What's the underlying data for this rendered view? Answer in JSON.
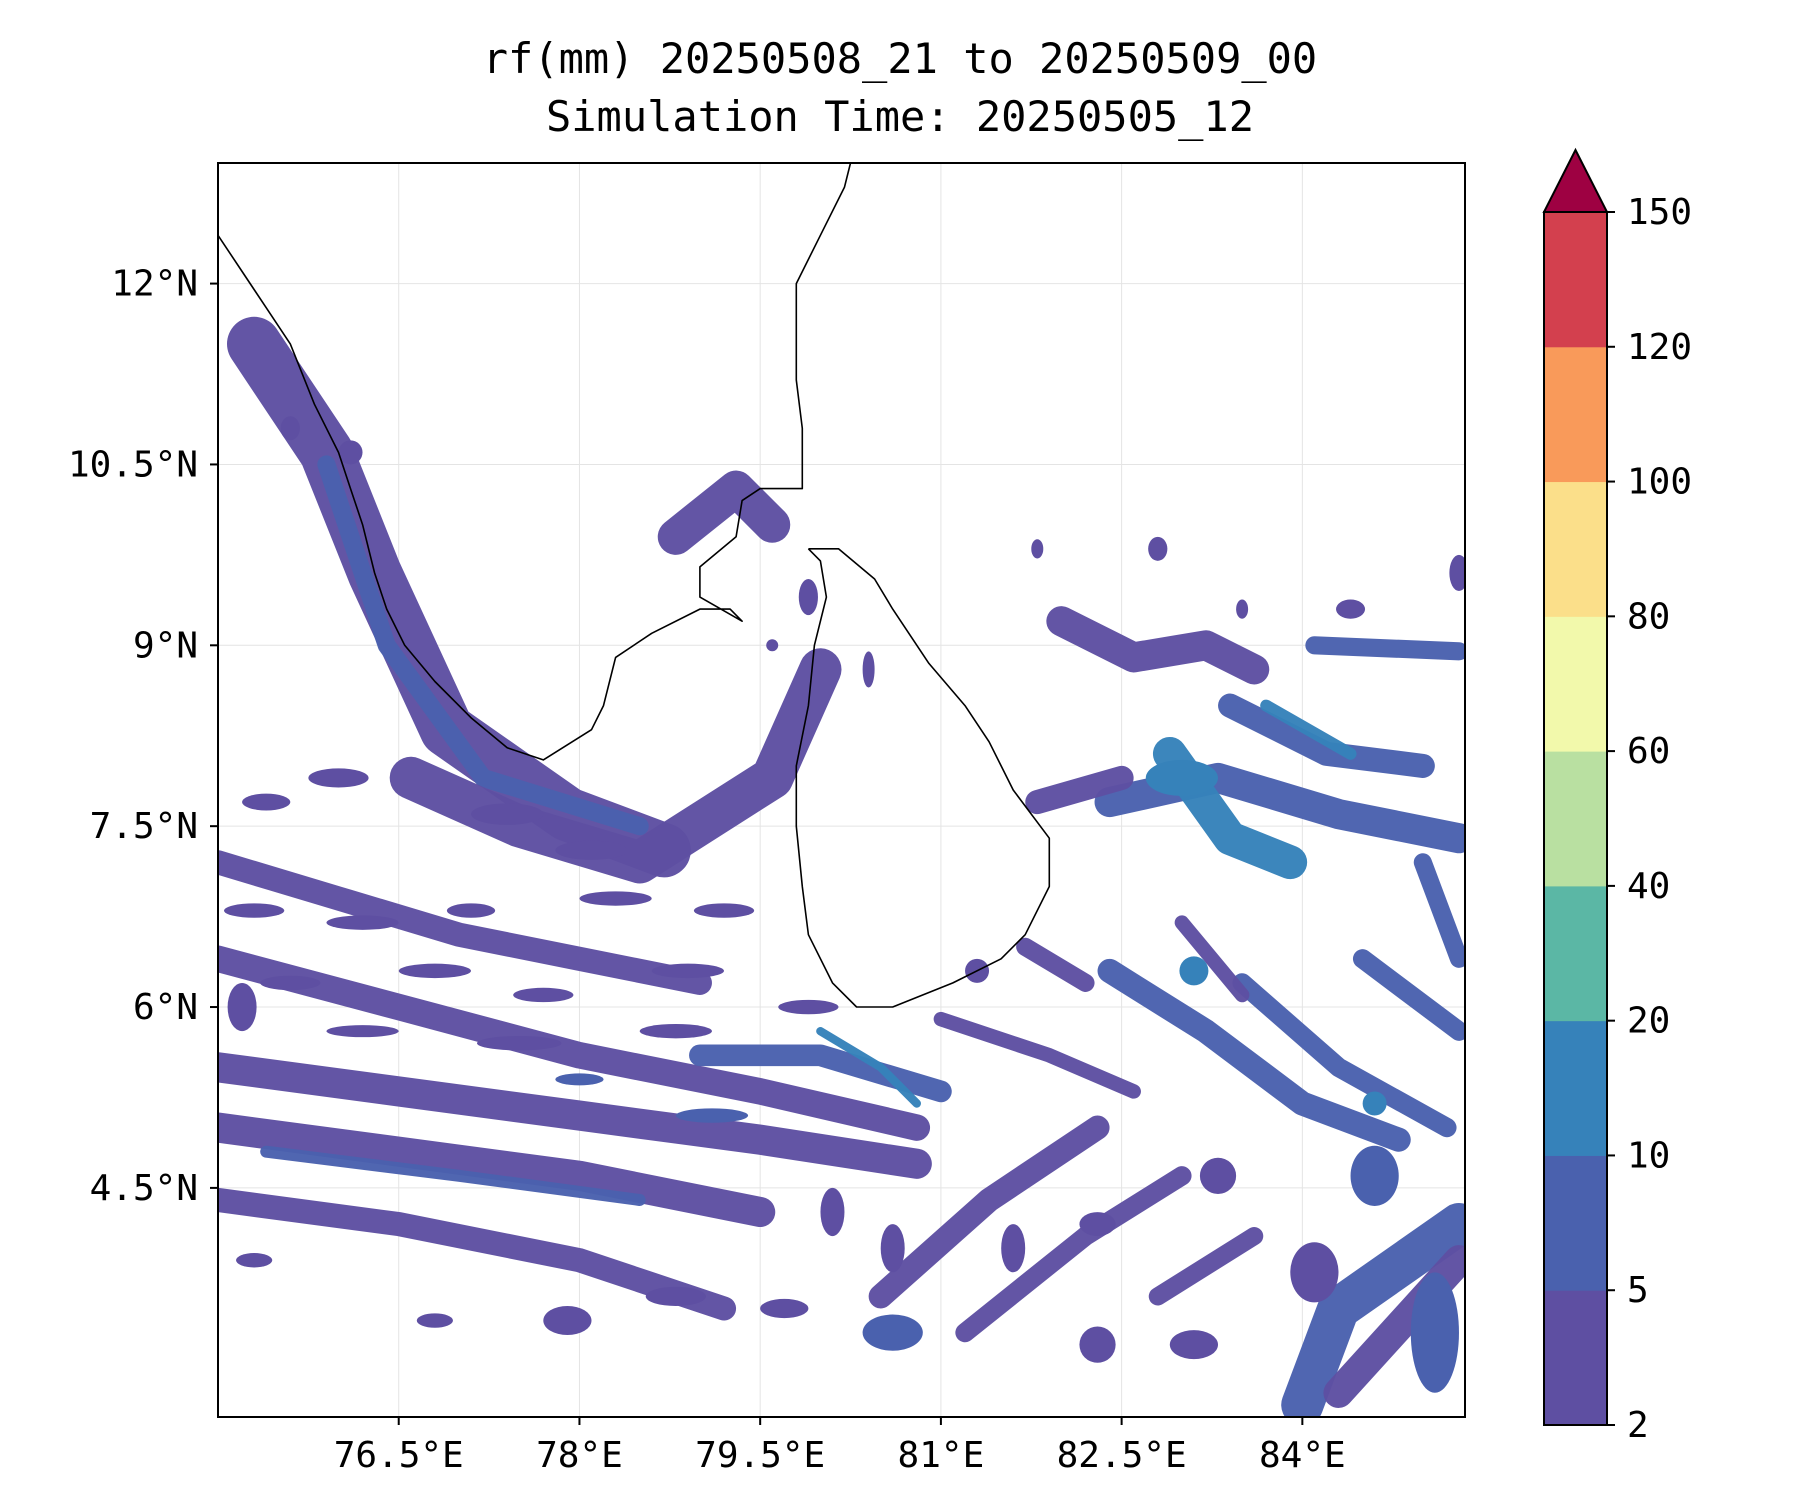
{
  "title": {
    "line1": "rf(mm) 20250508_21 to 20250509_00",
    "line2": "Simulation Time: 20250505_12"
  },
  "map": {
    "lon_range": [
      75.0,
      85.35
    ],
    "lat_range": [
      2.6,
      13.0
    ],
    "lon_ticks": [
      {
        "value": 76.5,
        "label": "76.5°E"
      },
      {
        "value": 78.0,
        "label": "78°E"
      },
      {
        "value": 79.5,
        "label": "79.5°E"
      },
      {
        "value": 81.0,
        "label": "81°E"
      },
      {
        "value": 82.5,
        "label": "82.5°E"
      },
      {
        "value": 84.0,
        "label": "84°E"
      }
    ],
    "lat_ticks": [
      {
        "value": 12.0,
        "label": "12°N"
      },
      {
        "value": 10.5,
        "label": "10.5°N"
      },
      {
        "value": 9.0,
        "label": "9°N"
      },
      {
        "value": 7.5,
        "label": "7.5°N"
      },
      {
        "value": 6.0,
        "label": "6°N"
      },
      {
        "value": 4.5,
        "label": "4.5°N"
      }
    ],
    "gridlines": true
  },
  "colorbar": {
    "levels": [
      2,
      5,
      10,
      20,
      40,
      60,
      80,
      100,
      120,
      150
    ],
    "labels": [
      "2",
      "5",
      "10",
      "20",
      "40",
      "60",
      "80",
      "100",
      "120",
      "150"
    ],
    "colors": [
      "#5e4fa2",
      "#4a61ae",
      "#3682ba",
      "#5bb7a5",
      "#b9e0a1",
      "#f2f9ab",
      "#fbdf8a",
      "#f99a5a",
      "#d3404e"
    ],
    "extend_color": "#9e0142",
    "extend": "max"
  },
  "rain_bands": [
    {
      "points": [
        [
          75.3,
          11.5
        ],
        [
          75.9,
          10.6
        ],
        [
          76.3,
          9.6
        ],
        [
          76.9,
          8.3
        ],
        [
          77.9,
          7.6
        ],
        [
          78.7,
          7.3
        ]
      ],
      "level": 0,
      "width": 0.45
    },
    {
      "points": [
        [
          75.9,
          10.5
        ],
        [
          76.4,
          9.0
        ],
        [
          77.2,
          7.9
        ],
        [
          78.5,
          7.5
        ]
      ],
      "level": 1,
      "width": 0.15
    },
    {
      "points": [
        [
          76.6,
          7.9
        ],
        [
          77.5,
          7.5
        ],
        [
          78.5,
          7.2
        ],
        [
          79.6,
          7.9
        ],
        [
          80.0,
          8.8
        ]
      ],
      "level": 0,
      "width": 0.35
    },
    {
      "points": [
        [
          78.8,
          9.9
        ],
        [
          79.3,
          10.3
        ],
        [
          79.6,
          10.0
        ]
      ],
      "level": 0,
      "width": 0.3
    },
    {
      "points": [
        [
          75.0,
          7.2
        ],
        [
          76.0,
          6.9
        ],
        [
          77.0,
          6.6
        ],
        [
          78.0,
          6.4
        ],
        [
          79.0,
          6.2
        ]
      ],
      "level": 0,
      "width": 0.2
    },
    {
      "points": [
        [
          75.0,
          6.4
        ],
        [
          76.5,
          6.0
        ],
        [
          78.0,
          5.6
        ],
        [
          79.5,
          5.3
        ],
        [
          80.8,
          5.0
        ]
      ],
      "level": 0,
      "width": 0.22
    },
    {
      "points": [
        [
          75.0,
          5.5
        ],
        [
          76.5,
          5.3
        ],
        [
          78.0,
          5.1
        ],
        [
          79.5,
          4.9
        ],
        [
          80.8,
          4.7
        ]
      ],
      "level": 0,
      "width": 0.25
    },
    {
      "points": [
        [
          75.0,
          5.0
        ],
        [
          76.5,
          4.8
        ],
        [
          78.0,
          4.6
        ],
        [
          79.5,
          4.3
        ]
      ],
      "level": 0,
      "width": 0.25
    },
    {
      "points": [
        [
          75.4,
          4.8
        ],
        [
          77.0,
          4.6
        ],
        [
          78.5,
          4.4
        ]
      ],
      "level": 1,
      "width": 0.1
    },
    {
      "points": [
        [
          75.0,
          4.4
        ],
        [
          76.5,
          4.2
        ],
        [
          78.0,
          3.9
        ],
        [
          79.2,
          3.5
        ]
      ],
      "level": 0,
      "width": 0.2
    },
    {
      "points": [
        [
          79.0,
          5.6
        ],
        [
          80.0,
          5.6
        ],
        [
          81.0,
          5.3
        ]
      ],
      "level": 1,
      "width": 0.18
    },
    {
      "points": [
        [
          80.0,
          5.8
        ],
        [
          80.5,
          5.5
        ],
        [
          80.8,
          5.2
        ]
      ],
      "level": 2,
      "width": 0.07
    },
    {
      "points": [
        [
          80.5,
          3.6
        ],
        [
          81.4,
          4.4
        ],
        [
          82.3,
          5.0
        ]
      ],
      "level": 0,
      "width": 0.2
    },
    {
      "points": [
        [
          81.2,
          3.3
        ],
        [
          82.2,
          4.1
        ],
        [
          83.0,
          4.6
        ]
      ],
      "level": 0,
      "width": 0.16
    },
    {
      "points": [
        [
          82.8,
          3.6
        ],
        [
          83.6,
          4.1
        ]
      ],
      "level": 0,
      "width": 0.15
    },
    {
      "points": [
        [
          84.0,
          2.7
        ],
        [
          84.3,
          3.5
        ],
        [
          85.3,
          4.2
        ]
      ],
      "level": 1,
      "width": 0.35
    },
    {
      "points": [
        [
          84.3,
          2.8
        ],
        [
          85.3,
          3.9
        ]
      ],
      "level": 0,
      "width": 0.25
    },
    {
      "points": [
        [
          82.4,
          6.3
        ],
        [
          83.2,
          5.8
        ],
        [
          84.0,
          5.2
        ],
        [
          84.8,
          4.9
        ]
      ],
      "level": 1,
      "width": 0.2
    },
    {
      "points": [
        [
          83.5,
          6.2
        ],
        [
          84.3,
          5.5
        ],
        [
          85.2,
          5.0
        ]
      ],
      "level": 1,
      "width": 0.16
    },
    {
      "points": [
        [
          84.5,
          6.4
        ],
        [
          85.3,
          5.8
        ]
      ],
      "level": 1,
      "width": 0.16
    },
    {
      "points": [
        [
          82.4,
          7.7
        ],
        [
          83.3,
          7.9
        ],
        [
          84.3,
          7.6
        ],
        [
          85.3,
          7.4
        ]
      ],
      "level": 1,
      "width": 0.25
    },
    {
      "points": [
        [
          82.9,
          8.1
        ],
        [
          83.4,
          7.4
        ],
        [
          83.9,
          7.2
        ]
      ],
      "level": 2,
      "width": 0.28
    },
    {
      "points": [
        [
          83.4,
          8.5
        ],
        [
          84.2,
          8.1
        ],
        [
          85.0,
          8.0
        ]
      ],
      "level": 1,
      "width": 0.2
    },
    {
      "points": [
        [
          83.7,
          8.5
        ],
        [
          84.4,
          8.1
        ]
      ],
      "level": 2,
      "width": 0.1
    },
    {
      "points": [
        [
          82.0,
          9.2
        ],
        [
          82.6,
          8.9
        ],
        [
          83.2,
          9.0
        ],
        [
          83.6,
          8.8
        ]
      ],
      "level": 0,
      "width": 0.25
    },
    {
      "points": [
        [
          84.1,
          9.0
        ],
        [
          85.3,
          8.95
        ]
      ],
      "level": 1,
      "width": 0.15
    },
    {
      "points": [
        [
          81.8,
          7.7
        ],
        [
          82.5,
          7.9
        ]
      ],
      "level": 0,
      "width": 0.2
    },
    {
      "points": [
        [
          81.7,
          6.5
        ],
        [
          82.2,
          6.2
        ]
      ],
      "level": 0,
      "width": 0.15
    },
    {
      "points": [
        [
          83.0,
          6.7
        ],
        [
          83.5,
          6.1
        ]
      ],
      "level": 0,
      "width": 0.12
    },
    {
      "points": [
        [
          81.0,
          5.9
        ],
        [
          81.9,
          5.6
        ],
        [
          82.6,
          5.3
        ]
      ],
      "level": 0,
      "width": 0.12
    },
    {
      "points": [
        [
          85.0,
          7.2
        ],
        [
          85.3,
          6.4
        ]
      ],
      "level": 1,
      "width": 0.15
    }
  ],
  "rain_blobs": [
    [
      75.4,
      7.7,
      0.2,
      0.07,
      0
    ],
    [
      76.0,
      7.9,
      0.25,
      0.08,
      0
    ],
    [
      77.4,
      7.6,
      0.3,
      0.09,
      0
    ],
    [
      78.1,
      7.3,
      0.3,
      0.08,
      0
    ],
    [
      75.3,
      6.8,
      0.25,
      0.06,
      0
    ],
    [
      76.2,
      6.7,
      0.3,
      0.06,
      0
    ],
    [
      77.1,
      6.8,
      0.2,
      0.06,
      0
    ],
    [
      78.3,
      6.9,
      0.3,
      0.06,
      0
    ],
    [
      79.2,
      6.8,
      0.25,
      0.06,
      0
    ],
    [
      75.6,
      6.2,
      0.25,
      0.06,
      0
    ],
    [
      76.8,
      6.3,
      0.3,
      0.06,
      0
    ],
    [
      77.7,
      6.1,
      0.25,
      0.06,
      0
    ],
    [
      78.9,
      6.3,
      0.3,
      0.06,
      0
    ],
    [
      79.9,
      6.0,
      0.25,
      0.06,
      0
    ],
    [
      76.2,
      5.8,
      0.3,
      0.05,
      0
    ],
    [
      77.5,
      5.7,
      0.35,
      0.06,
      0
    ],
    [
      78.8,
      5.8,
      0.3,
      0.06,
      0
    ],
    [
      75.3,
      3.9,
      0.15,
      0.06,
      0
    ],
    [
      76.8,
      3.4,
      0.15,
      0.06,
      0
    ],
    [
      77.9,
      3.4,
      0.2,
      0.12,
      0
    ],
    [
      78.8,
      3.6,
      0.25,
      0.08,
      0
    ],
    [
      79.7,
      3.5,
      0.2,
      0.08,
      0
    ],
    [
      80.6,
      3.3,
      0.25,
      0.15,
      1
    ],
    [
      82.3,
      4.2,
      0.15,
      0.1,
      0
    ],
    [
      83.3,
      4.6,
      0.15,
      0.15,
      0
    ],
    [
      84.6,
      4.6,
      0.2,
      0.25,
      1
    ],
    [
      85.1,
      3.3,
      0.2,
      0.5,
      1
    ],
    [
      84.1,
      3.8,
      0.2,
      0.25,
      0
    ],
    [
      79.9,
      9.4,
      0.08,
      0.15,
      0
    ],
    [
      80.4,
      8.8,
      0.05,
      0.15,
      0
    ],
    [
      79.6,
      9.0,
      0.05,
      0.05,
      0
    ],
    [
      75.6,
      10.8,
      0.08,
      0.1,
      0
    ],
    [
      76.1,
      10.6,
      0.1,
      0.1,
      0
    ],
    [
      84.4,
      9.3,
      0.12,
      0.08,
      0
    ],
    [
      83.5,
      9.3,
      0.05,
      0.08,
      0
    ],
    [
      82.8,
      9.8,
      0.08,
      0.1,
      0
    ],
    [
      85.3,
      9.6,
      0.08,
      0.15,
      0
    ],
    [
      81.8,
      9.8,
      0.05,
      0.08,
      0
    ],
    [
      79.1,
      5.1,
      0.3,
      0.06,
      1
    ],
    [
      78.0,
      5.4,
      0.2,
      0.05,
      1
    ],
    [
      83.1,
      6.3,
      0.12,
      0.12,
      2
    ],
    [
      84.6,
      5.2,
      0.1,
      0.1,
      2
    ],
    [
      83.0,
      7.9,
      0.3,
      0.15,
      2
    ],
    [
      83.1,
      3.2,
      0.2,
      0.12,
      0
    ],
    [
      80.1,
      4.3,
      0.1,
      0.2,
      0
    ],
    [
      81.6,
      4.0,
      0.1,
      0.2,
      0
    ],
    [
      82.3,
      3.2,
      0.15,
      0.15,
      0
    ],
    [
      81.3,
      6.3,
      0.1,
      0.1,
      0
    ],
    [
      80.6,
      4.0,
      0.1,
      0.2,
      0
    ],
    [
      75.2,
      6.0,
      0.12,
      0.2,
      0
    ]
  ],
  "coastlines": [
    [
      [
        75.0,
        12.4
      ],
      [
        75.2,
        12.1
      ],
      [
        75.4,
        11.8
      ],
      [
        75.6,
        11.5
      ],
      [
        75.8,
        11.0
      ],
      [
        76.0,
        10.6
      ],
      [
        76.1,
        10.3
      ],
      [
        76.2,
        10.0
      ],
      [
        76.3,
        9.6
      ],
      [
        76.4,
        9.3
      ],
      [
        76.55,
        9.0
      ],
      [
        76.8,
        8.7
      ],
      [
        77.1,
        8.4
      ],
      [
        77.4,
        8.15
      ],
      [
        77.7,
        8.05
      ],
      [
        78.1,
        8.3
      ],
      [
        78.2,
        8.5
      ],
      [
        78.3,
        8.9
      ],
      [
        78.6,
        9.1
      ],
      [
        79.0,
        9.3
      ],
      [
        79.25,
        9.3
      ],
      [
        79.35,
        9.2
      ],
      [
        79.0,
        9.4
      ],
      [
        79.0,
        9.65
      ],
      [
        79.3,
        9.9
      ],
      [
        79.35,
        10.2
      ],
      [
        79.5,
        10.3
      ],
      [
        79.85,
        10.3
      ],
      [
        79.85,
        10.8
      ],
      [
        79.8,
        11.2
      ],
      [
        79.8,
        11.6
      ],
      [
        79.8,
        12.0
      ],
      [
        80.0,
        12.4
      ],
      [
        80.2,
        12.8
      ],
      [
        80.25,
        13.0
      ]
    ],
    [
      [
        79.9,
        9.8
      ],
      [
        80.15,
        9.8
      ],
      [
        80.45,
        9.55
      ],
      [
        80.6,
        9.3
      ],
      [
        80.9,
        8.85
      ],
      [
        81.2,
        8.5
      ],
      [
        81.4,
        8.2
      ],
      [
        81.6,
        7.8
      ],
      [
        81.9,
        7.4
      ],
      [
        81.9,
        7.0
      ],
      [
        81.7,
        6.6
      ],
      [
        81.5,
        6.4
      ],
      [
        81.1,
        6.2
      ],
      [
        80.6,
        6.0
      ],
      [
        80.3,
        6.0
      ],
      [
        80.1,
        6.2
      ],
      [
        79.9,
        6.6
      ],
      [
        79.85,
        7.0
      ],
      [
        79.8,
        7.5
      ],
      [
        79.8,
        8.0
      ],
      [
        79.9,
        8.5
      ],
      [
        79.95,
        9.0
      ],
      [
        80.05,
        9.4
      ],
      [
        80.0,
        9.7
      ],
      [
        79.9,
        9.8
      ]
    ]
  ]
}
